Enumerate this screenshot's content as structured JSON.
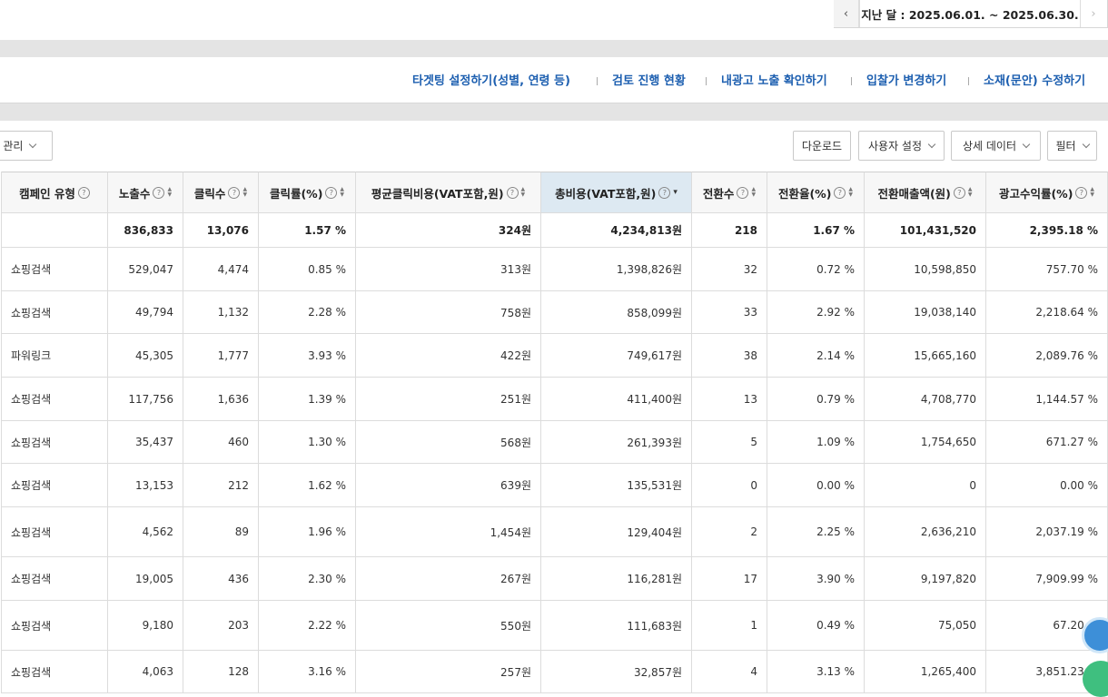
{
  "date_bar": {
    "text": "지난 달 : 2025.06.01. ~ 2025.06.30."
  },
  "links": [
    "타겟팅 설정하기(성별, 연령 등)",
    "검토 진행 현황",
    "내광고 노출 확인하기",
    "입찰가 변경하기",
    "소재(문안) 수정하기"
  ],
  "toolbar": {
    "left_dropdown": "인 관리",
    "buttons": [
      "다운로드",
      "사용자 설정",
      "상세 데이터",
      "필터"
    ]
  },
  "table": {
    "headers": [
      "캠페인 유형",
      "노출수",
      "클릭수",
      "클릭률(%)",
      "평균클릭비용(VAT포함,원)",
      "총비용(VAT포함,원)",
      "전환수",
      "전환율(%)",
      "전환매출액(원)",
      "광고수익률(%)"
    ],
    "total": [
      "836,833",
      "13,076",
      "1.57 %",
      "324원",
      "4,234,813원",
      "218",
      "1.67 %",
      "101,431,520",
      "2,395.18 %"
    ],
    "rows": [
      [
        "쇼핑검색",
        "529,047",
        "4,474",
        "0.85 %",
        "313원",
        "1,398,826원",
        "32",
        "0.72 %",
        "10,598,850",
        "757.70 %"
      ],
      [
        "쇼핑검색",
        "49,794",
        "1,132",
        "2.28 %",
        "758원",
        "858,099원",
        "33",
        "2.92 %",
        "19,038,140",
        "2,218.64 %"
      ],
      [
        "파워링크",
        "45,305",
        "1,777",
        "3.93 %",
        "422원",
        "749,617원",
        "38",
        "2.14 %",
        "15,665,160",
        "2,089.76 %"
      ],
      [
        "쇼핑검색",
        "117,756",
        "1,636",
        "1.39 %",
        "251원",
        "411,400원",
        "13",
        "0.79 %",
        "4,708,770",
        "1,144.57 %"
      ],
      [
        "쇼핑검색",
        "35,437",
        "460",
        "1.30 %",
        "568원",
        "261,393원",
        "5",
        "1.09 %",
        "1,754,650",
        "671.27 %"
      ],
      [
        "쇼핑검색",
        "13,153",
        "212",
        "1.62 %",
        "639원",
        "135,531원",
        "0",
        "0.00 %",
        "0",
        "0.00 %"
      ],
      [
        "쇼핑검색",
        "4,562",
        "89",
        "1.96 %",
        "1,454원",
        "129,404원",
        "2",
        "2.25 %",
        "2,636,210",
        "2,037.19 %"
      ],
      [
        "쇼핑검색",
        "19,005",
        "436",
        "2.30 %",
        "267원",
        "116,281원",
        "17",
        "3.90 %",
        "9,197,820",
        "7,909.99 %"
      ],
      [
        "쇼핑검색",
        "9,180",
        "203",
        "2.22 %",
        "550원",
        "111,683원",
        "1",
        "0.49 %",
        "75,050",
        "67.20 %"
      ],
      [
        "쇼핑검색",
        "4,063",
        "128",
        "3.16 %",
        "257원",
        "32,857원",
        "4",
        "3.13 %",
        "1,265,400",
        "3,851.23 %"
      ]
    ]
  }
}
